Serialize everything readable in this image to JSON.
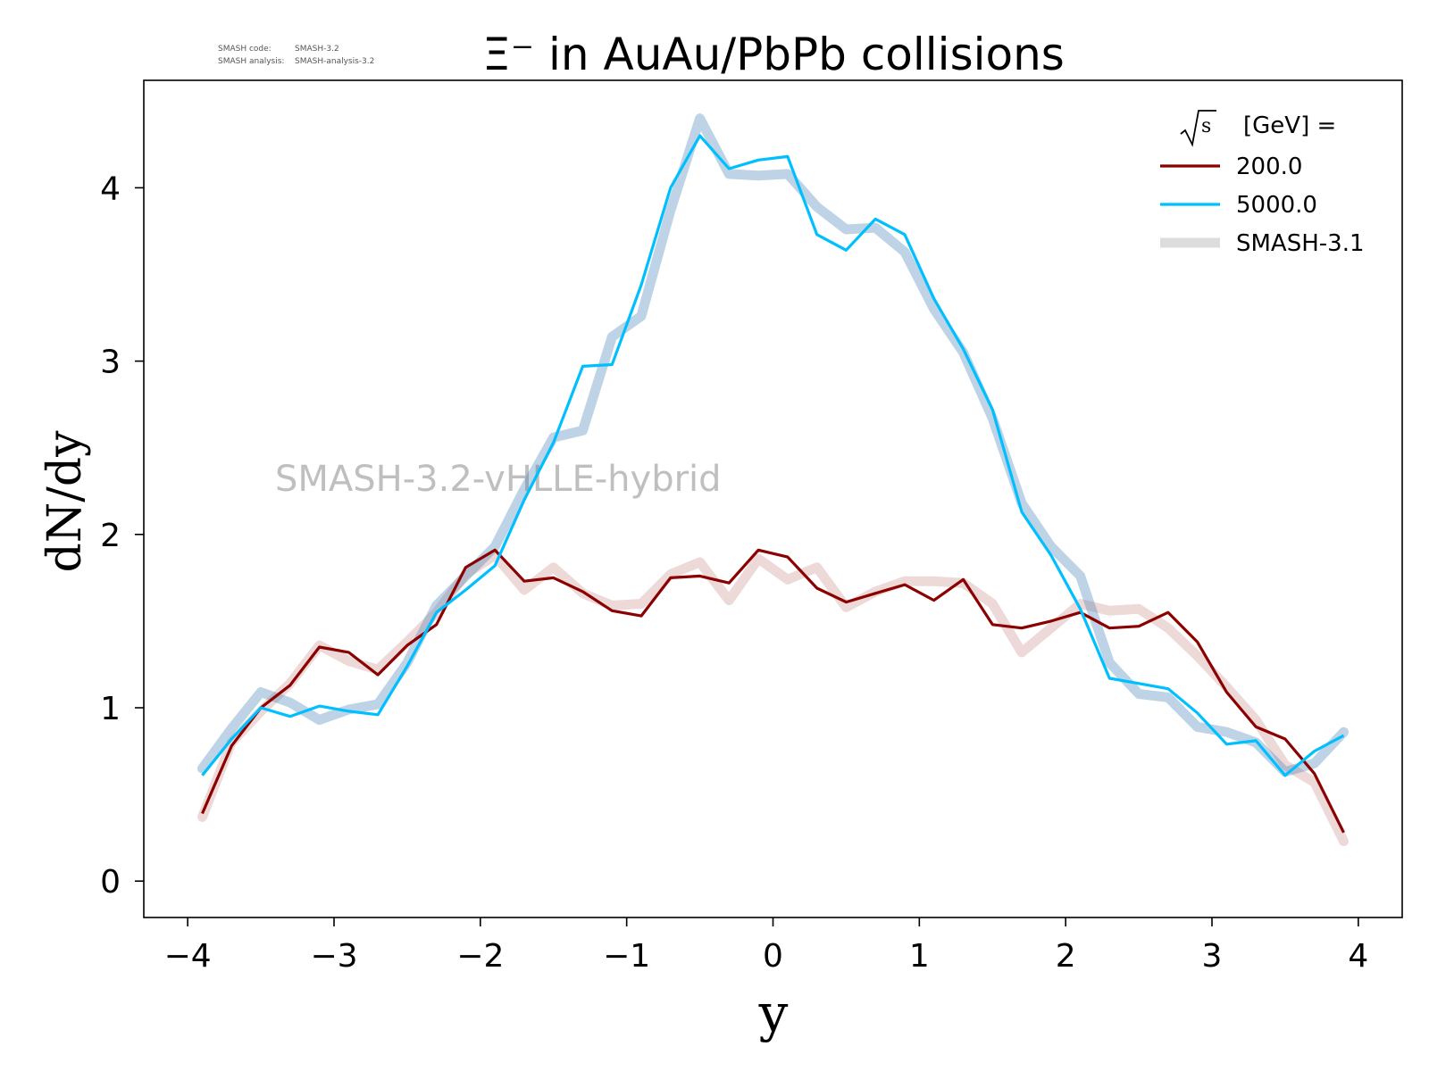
{
  "chart_data": {
    "type": "line",
    "title": "Ξ⁻ in AuAu/PbPb collisions",
    "version_info": {
      "code_label": "SMASH code:",
      "code_value": "SMASH-3.2",
      "analysis_label": "SMASH analysis:",
      "analysis_value": "SMASH-analysis-3.2"
    },
    "watermark": "SMASH-3.2-vHLLE-hybrid",
    "xlabel": "y",
    "ylabel": "dN/dy",
    "xlim": [
      -4.3,
      4.3
    ],
    "ylim": [
      -0.21,
      4.62
    ],
    "xticks": [
      -4,
      -3,
      -2,
      -1,
      0,
      1,
      2,
      3,
      4
    ],
    "xtick_labels": [
      "−4",
      "−3",
      "−2",
      "−1",
      "0",
      "1",
      "2",
      "3",
      "4"
    ],
    "yticks": [
      0,
      1,
      2,
      3,
      4
    ],
    "ytick_labels": [
      "0",
      "1",
      "2",
      "3",
      "4"
    ],
    "grid": false,
    "legend": {
      "placement": "top-right",
      "title_sqrt": "s",
      "title_rest": "[GeV] =",
      "entries": [
        "200.0",
        "5000.0",
        "SMASH-3.1"
      ]
    },
    "x": [
      -3.9,
      -3.7,
      -3.5,
      -3.3,
      -3.1,
      -2.9,
      -2.7,
      -2.5,
      -2.3,
      -2.1,
      -1.9,
      -1.7,
      -1.5,
      -1.3,
      -1.1,
      -0.9,
      -0.7,
      -0.5,
      -0.3,
      -0.1,
      0.1,
      0.3,
      0.5,
      0.7,
      0.9,
      1.1,
      1.3,
      1.5,
      1.7,
      1.9,
      2.1,
      2.3,
      2.5,
      2.7,
      2.9,
      3.1,
      3.3,
      3.5,
      3.7,
      3.9
    ],
    "series": [
      {
        "name": "200.0",
        "color": "#8b0000",
        "values": [
          0.39,
          0.78,
          1.0,
          1.13,
          1.35,
          1.32,
          1.19,
          1.36,
          1.48,
          1.81,
          1.91,
          1.73,
          1.75,
          1.67,
          1.56,
          1.53,
          1.75,
          1.76,
          1.72,
          1.91,
          1.87,
          1.69,
          1.61,
          1.66,
          1.71,
          1.62,
          1.74,
          1.48,
          1.46,
          1.5,
          1.55,
          1.46,
          1.47,
          1.55,
          1.38,
          1.09,
          0.89,
          0.82,
          0.62,
          0.28
        ]
      },
      {
        "name": "5000.0",
        "color": "#00bfff",
        "values": [
          0.61,
          0.82,
          1.0,
          0.95,
          1.01,
          0.98,
          0.96,
          1.24,
          1.55,
          1.68,
          1.82,
          2.2,
          2.53,
          2.97,
          2.98,
          3.44,
          4.0,
          4.3,
          4.11,
          4.16,
          4.18,
          3.73,
          3.64,
          3.82,
          3.73,
          3.36,
          3.07,
          2.72,
          2.13,
          1.88,
          1.57,
          1.17,
          1.14,
          1.11,
          0.97,
          0.79,
          0.81,
          0.61,
          0.75,
          0.84
        ]
      },
      {
        "name": "SMASH-3.1",
        "reference": "200.0",
        "color": "#8b0000",
        "alpha": 0.15,
        "values": [
          0.37,
          0.8,
          0.98,
          1.14,
          1.36,
          1.27,
          1.22,
          1.38,
          1.55,
          1.77,
          1.88,
          1.68,
          1.81,
          1.66,
          1.59,
          1.6,
          1.77,
          1.84,
          1.62,
          1.86,
          1.74,
          1.81,
          1.58,
          1.67,
          1.73,
          1.73,
          1.72,
          1.6,
          1.32,
          1.46,
          1.6,
          1.56,
          1.57,
          1.46,
          1.3,
          1.12,
          0.93,
          0.67,
          0.57,
          0.23
        ]
      },
      {
        "name": "SMASH-3.1",
        "reference": "5000.0",
        "color": "#4682b4",
        "alpha": 0.35,
        "values": [
          0.65,
          0.88,
          1.09,
          1.03,
          0.93,
          0.99,
          1.02,
          1.26,
          1.59,
          1.76,
          1.93,
          2.26,
          2.56,
          2.6,
          3.14,
          3.26,
          3.87,
          4.4,
          4.08,
          4.07,
          4.08,
          3.89,
          3.76,
          3.77,
          3.63,
          3.3,
          3.05,
          2.67,
          2.18,
          1.93,
          1.76,
          1.26,
          1.08,
          1.06,
          0.89,
          0.86,
          0.8,
          0.63,
          0.68,
          0.86
        ]
      }
    ]
  }
}
